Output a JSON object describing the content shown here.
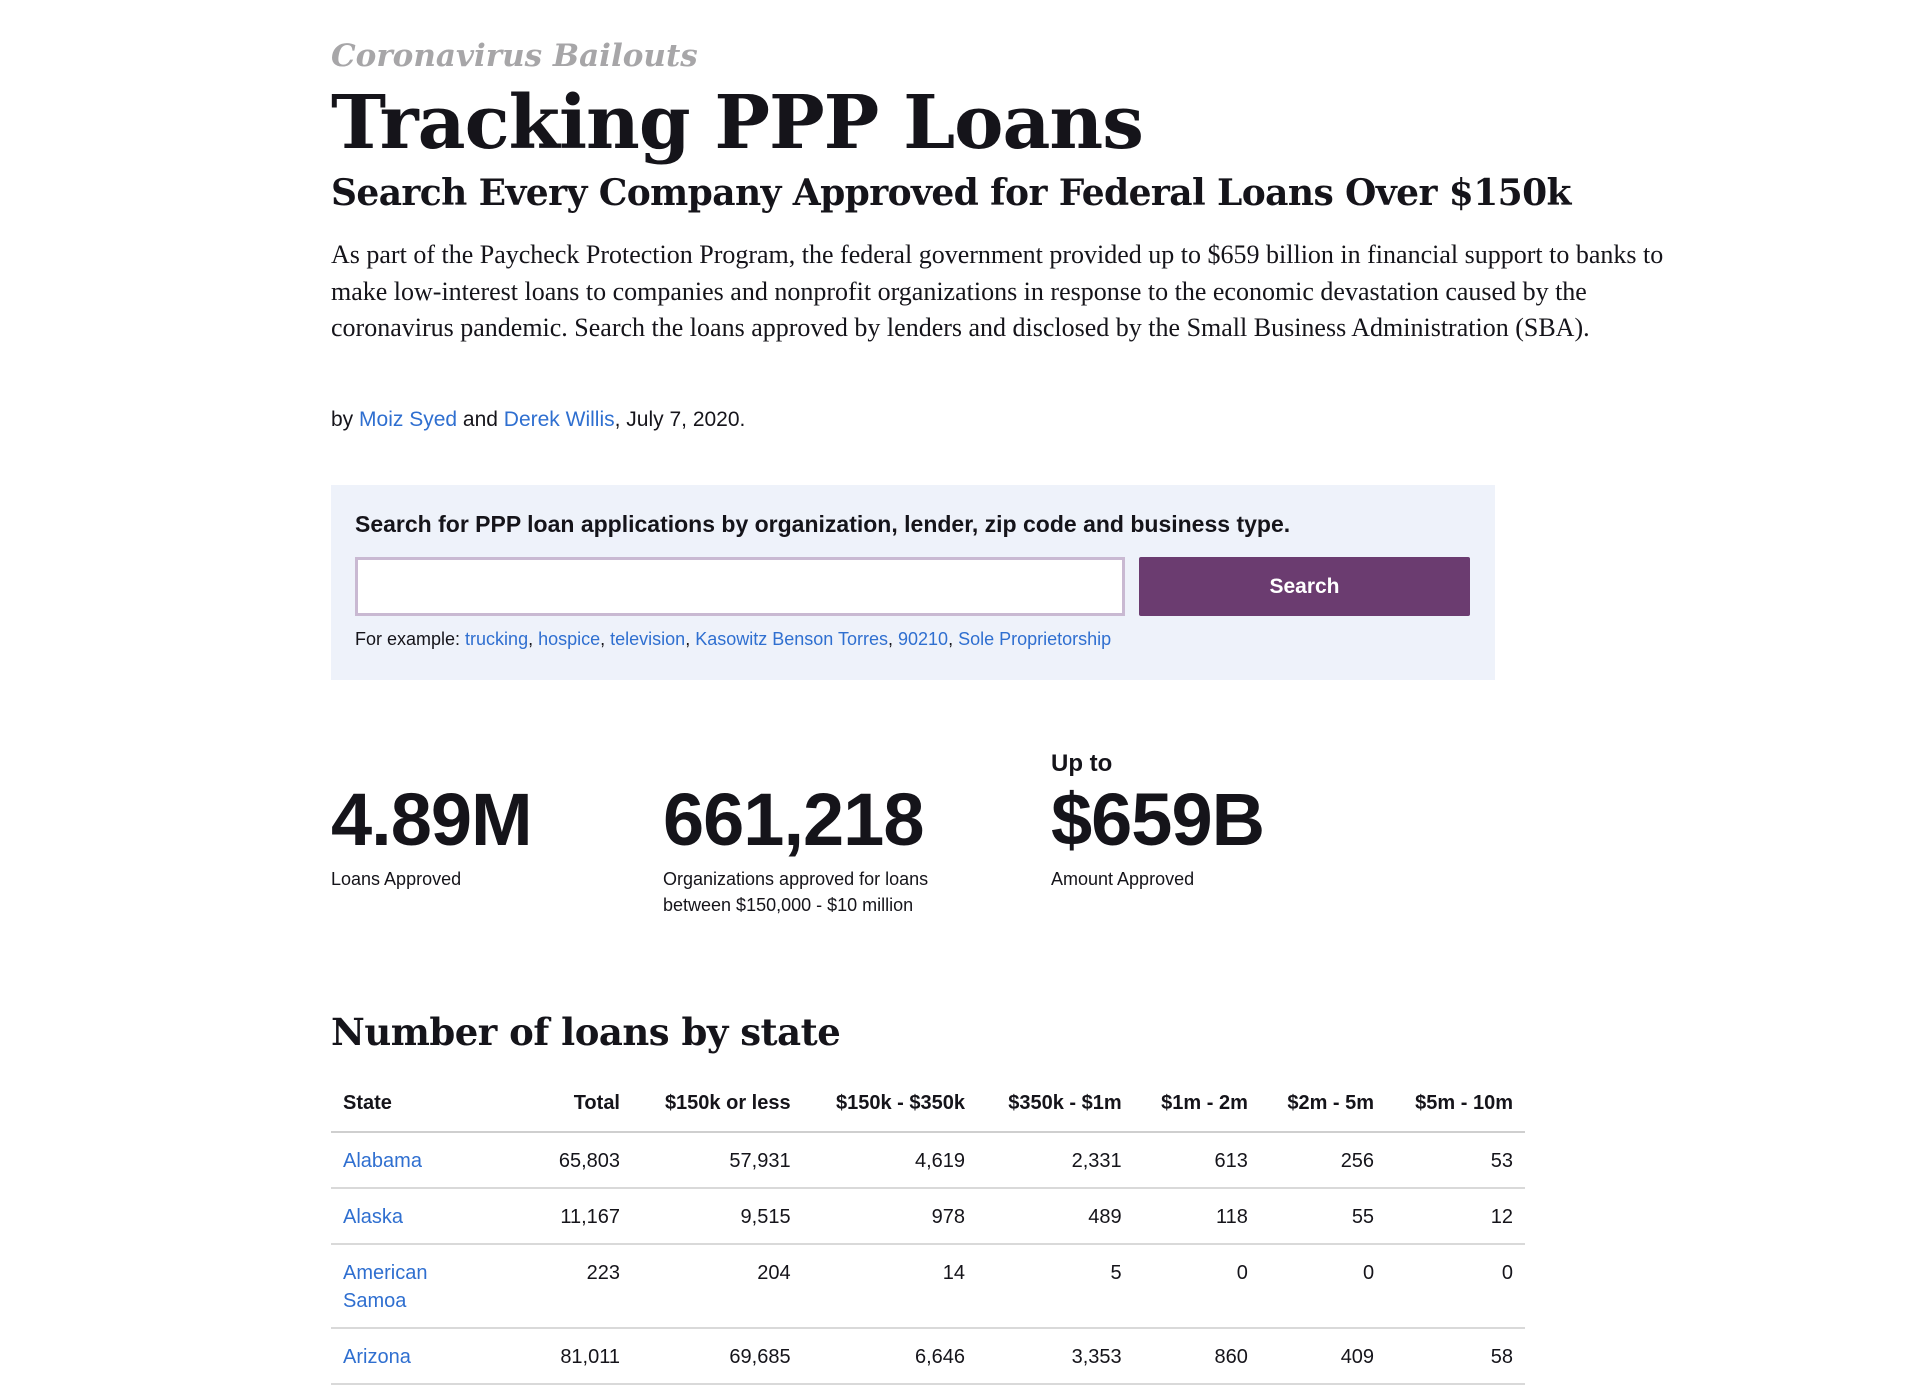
{
  "header": {
    "kicker": "Coronavirus Bailouts",
    "title": "Tracking PPP Loans",
    "subtitle": "Search Every Company Approved for Federal Loans Over $150k",
    "intro": "As part of the Paycheck Protection Program, the federal government provided up to $659 billion in financial support to banks to make low-interest loans to companies and nonprofit organizations in response to the economic devastation caused by the coronavirus pandemic. Search the loans approved by lenders and disclosed by the Small Business Administration (SBA)."
  },
  "byline": {
    "prefix": "by ",
    "author1": "Moiz Syed",
    "and": " and ",
    "author2": "Derek Willis",
    "date": ", July 7, 2020."
  },
  "search": {
    "prompt": "Search for PPP loan applications by organization, lender, zip code and business type.",
    "placeholder": "",
    "value": "",
    "button_label": "Search",
    "examples_label": "For example: ",
    "examples": [
      "trucking",
      "hospice",
      "television",
      "Kasowitz Benson Torres",
      "90210",
      "Sole Proprietorship"
    ]
  },
  "stats": [
    {
      "pre": "",
      "value": "4.89M",
      "label_line1": "Loans Approved",
      "label_line2": ""
    },
    {
      "pre": "",
      "value": "661,218",
      "label_line1": "Organizations approved for loans",
      "label_line2": "between $150,000 - $10 million"
    },
    {
      "pre": "Up to",
      "value": "$659B",
      "label_line1": "Amount Approved",
      "label_line2": ""
    }
  ],
  "table": {
    "title": "Number of loans by state",
    "columns": [
      "State",
      "Total",
      "$150k or less",
      "$150k - $350k",
      "$350k - $1m",
      "$1m - 2m",
      "$2m - 5m",
      "$5m - 10m"
    ],
    "rows": [
      {
        "state": "Alabama",
        "state_line2": "",
        "values": [
          "65,803",
          "57,931",
          "4,619",
          "2,331",
          "613",
          "256",
          "53"
        ]
      },
      {
        "state": "Alaska",
        "state_line2": "",
        "values": [
          "11,167",
          "9,515",
          "978",
          "489",
          "118",
          "55",
          "12"
        ]
      },
      {
        "state": "American",
        "state_line2": "Samoa",
        "values": [
          "223",
          "204",
          "14",
          "5",
          "0",
          "0",
          "0"
        ]
      },
      {
        "state": "Arizona",
        "state_line2": "",
        "values": [
          "81,011",
          "69,685",
          "6,646",
          "3,353",
          "860",
          "409",
          "58"
        ]
      }
    ]
  },
  "colors": {
    "link": "#2f6fd0",
    "button": "#6b3c70",
    "search_bg": "#eef2fa",
    "kicker": "#a7a6a8",
    "text": "#15141a"
  }
}
